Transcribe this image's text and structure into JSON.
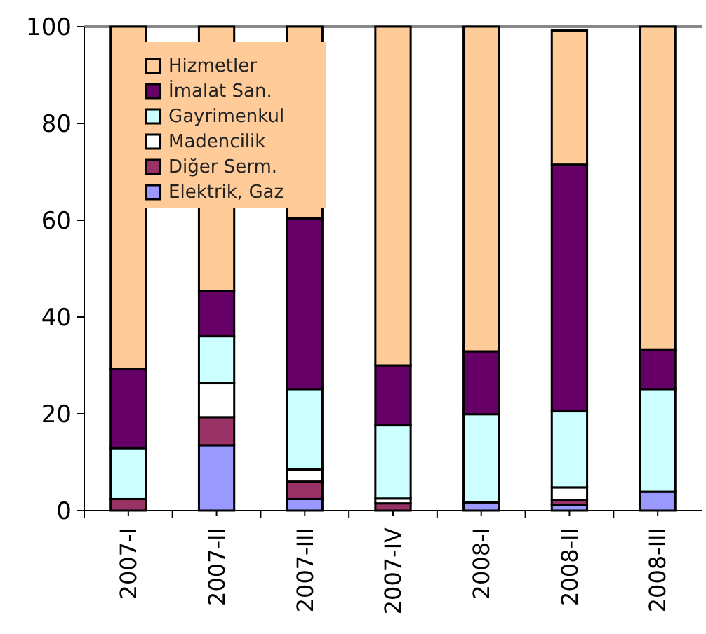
{
  "chart_data": {
    "type": "bar",
    "stacked": true,
    "categories": [
      "2007-I",
      "2007-II",
      "2007-III",
      "2007-IV",
      "2008-I",
      "2008-II",
      "2008-III"
    ],
    "series": [
      {
        "name": "Elektrik, Gaz",
        "color": "#9999ff",
        "values": [
          0,
          13.5,
          2.4,
          0,
          1.7,
          1.2,
          3.9
        ]
      },
      {
        "name": "Diğer Serm.",
        "color": "#993366",
        "values": [
          2.4,
          5.8,
          3.6,
          1.5,
          0,
          1.0,
          0
        ]
      },
      {
        "name": "Madencilik",
        "color": "#ffffff",
        "values": [
          0,
          7.0,
          2.5,
          1.0,
          0,
          2.6,
          0
        ]
      },
      {
        "name": "Gayrimenkul",
        "color": "#ccffff",
        "values": [
          10.5,
          9.7,
          16.6,
          15.1,
          18.2,
          15.7,
          21.2
        ]
      },
      {
        "name": "İmalat San.",
        "color": "#660066",
        "values": [
          16.3,
          9.3,
          35.3,
          12.4,
          13.0,
          51.0,
          8.2
        ]
      },
      {
        "name": "Hizmetler",
        "color": "#ffcc99",
        "values": [
          70.8,
          54.7,
          39.6,
          70.0,
          67.1,
          27.7,
          66.7
        ]
      }
    ],
    "ylim": [
      0,
      100
    ],
    "yticks": [
      0,
      20,
      40,
      60,
      80,
      100
    ],
    "legend": "top left",
    "grid": false
  }
}
